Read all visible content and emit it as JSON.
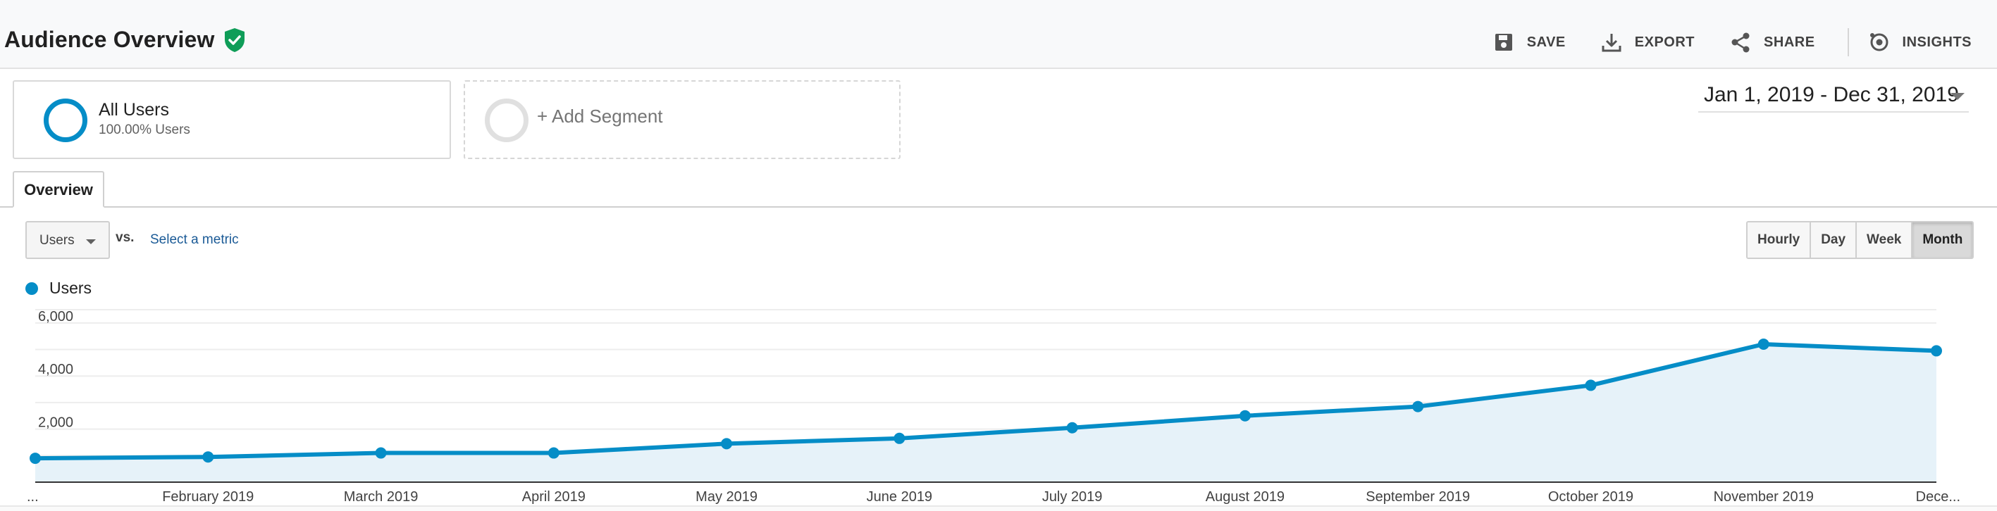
{
  "header": {
    "title": "Audience Overview",
    "actions": [
      {
        "label": "SAVE",
        "icon": "save-icon"
      },
      {
        "label": "EXPORT",
        "icon": "export-icon"
      },
      {
        "label": "SHARE",
        "icon": "share-icon"
      },
      {
        "label": "INSIGHTS",
        "icon": "insights-icon"
      }
    ]
  },
  "segments": {
    "all_users": {
      "name": "All Users",
      "percent": "100.00% Users"
    },
    "add_label": "+ Add Segment"
  },
  "date_range": "Jan 1, 2019 - Dec 31, 2019",
  "tabs": [
    {
      "label": "Overview",
      "active": true
    }
  ],
  "metric_selector": {
    "selected": "Users",
    "vs_label": "vs.",
    "select_metric_label": "Select a metric"
  },
  "granularity": {
    "options": [
      "Hourly",
      "Day",
      "Week",
      "Month"
    ],
    "active": "Month"
  },
  "legend": {
    "series_label": "Users"
  },
  "colors": {
    "accent": "#058dc7",
    "area_fill": "#e6f2f9",
    "verified_green": "#0f9d58",
    "link": "#1a5a96"
  },
  "chart_data": {
    "type": "area",
    "categories": [
      "...",
      "February 2019",
      "March 2019",
      "April 2019",
      "May 2019",
      "June 2019",
      "July 2019",
      "August 2019",
      "September 2019",
      "October 2019",
      "November 2019",
      "Dece..."
    ],
    "series": [
      {
        "name": "Users",
        "values": [
          900,
          950,
          1100,
          1100,
          1450,
          1650,
          2050,
          2500,
          2850,
          3650,
          5200,
          4950
        ]
      }
    ],
    "y_ticks": [
      "2,000",
      "4,000",
      "6,000"
    ],
    "ylim": [
      0,
      6000
    ],
    "grid": true,
    "legend": "top-left"
  }
}
